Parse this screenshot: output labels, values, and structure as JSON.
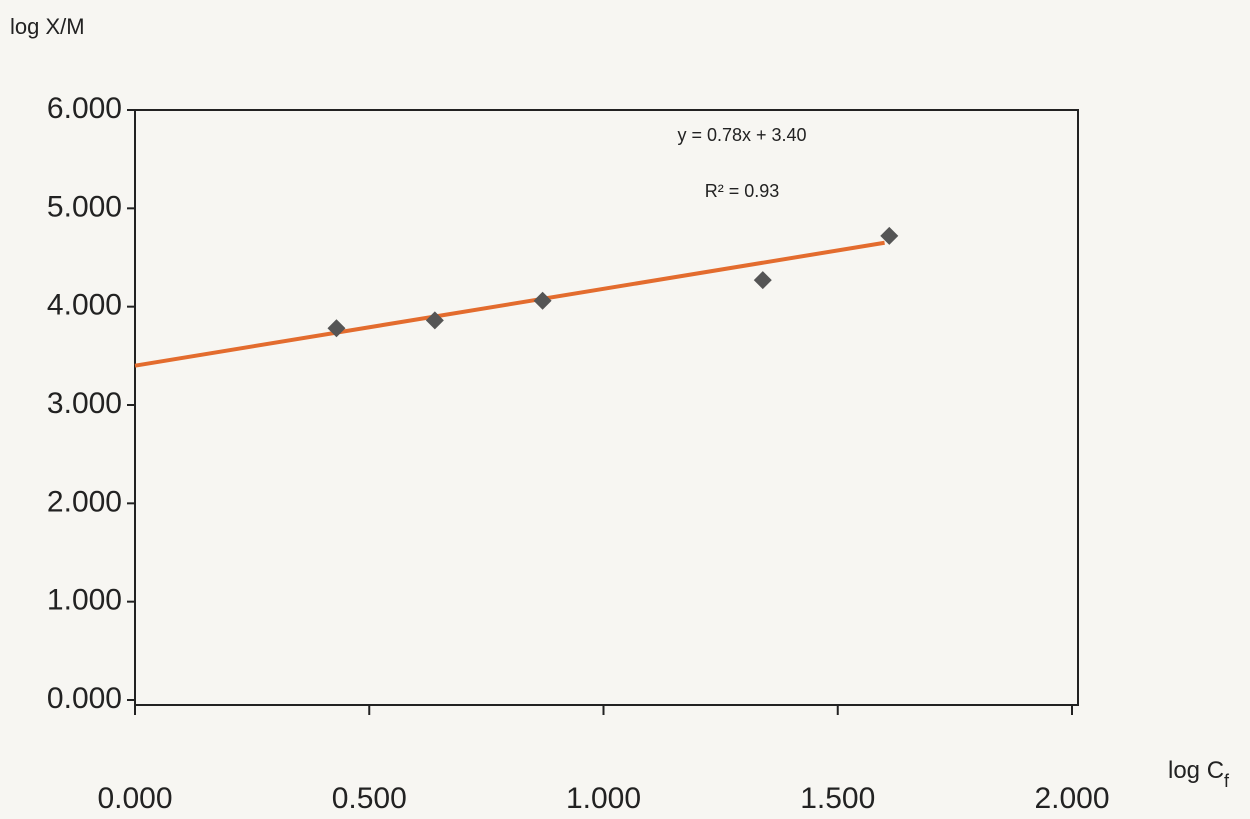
{
  "chart_data": {
    "type": "scatter",
    "y_label": "log X/M",
    "x_label": "log C",
    "x_label_subscript": "f",
    "annotations": [
      "y = 0.78x +  3.40",
      "R² = 0.93"
    ],
    "x": [
      0.43,
      0.64,
      0.87,
      1.34,
      1.61
    ],
    "values": [
      3.78,
      3.86,
      4.06,
      4.27,
      4.72
    ],
    "color": "#555555",
    "trendline": {
      "color": "#e36c2e",
      "x": [
        0,
        1.6
      ],
      "values": [
        3.4,
        4.65
      ]
    },
    "xlim": [
      0,
      2
    ],
    "xticks": [
      {
        "value": 0,
        "label": "0.000"
      },
      {
        "value": 0.5,
        "label": "0.500"
      },
      {
        "value": 1,
        "label": "1.000"
      },
      {
        "value": 1.5,
        "label": "1.500"
      },
      {
        "value": 2,
        "label": "2.000"
      }
    ],
    "ylim": [
      0,
      6
    ],
    "yticks": [
      {
        "value": 0,
        "label": "0.000"
      },
      {
        "value": 1,
        "label": "1.000"
      },
      {
        "value": 2,
        "label": "2.000"
      },
      {
        "value": 3,
        "label": "3.000"
      },
      {
        "value": 4,
        "label": "4.000"
      },
      {
        "value": 5,
        "label": "5.000"
      },
      {
        "value": 6,
        "label": "6.000"
      }
    ]
  }
}
